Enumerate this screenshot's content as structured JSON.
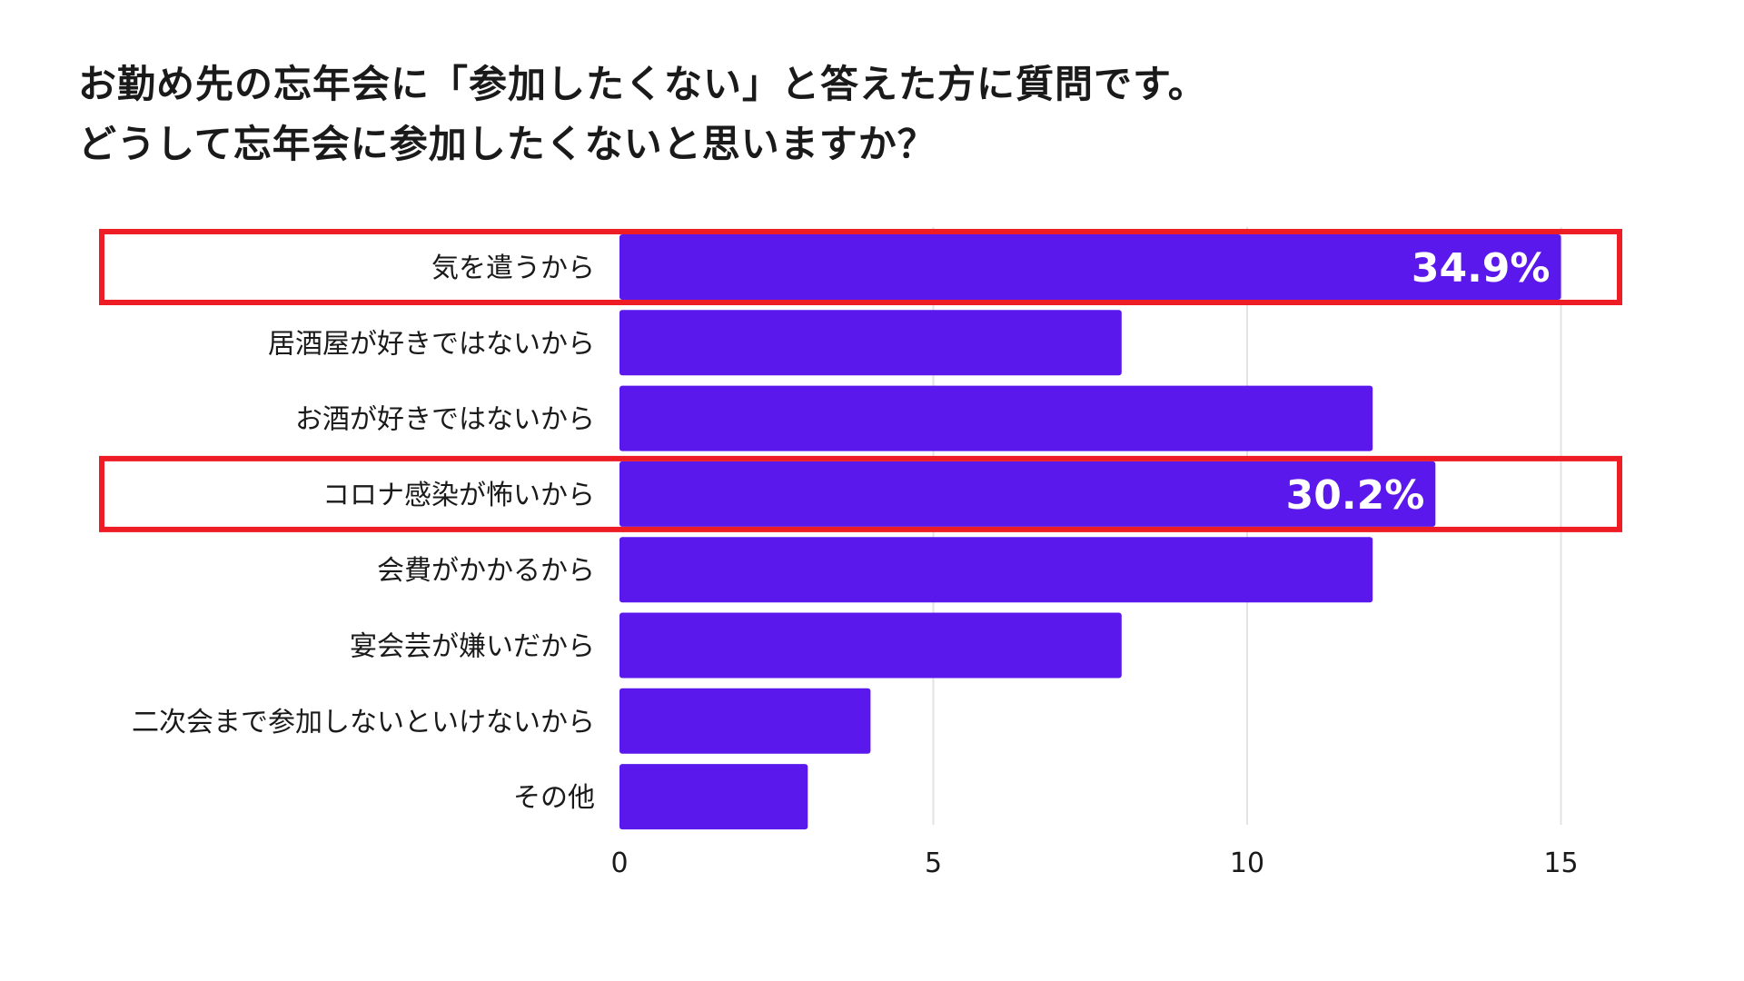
{
  "colors": {
    "bar": "#5b18ec",
    "highlight": "#ee1c25",
    "grid": "#e3e3e3"
  },
  "chart_data": {
    "type": "bar",
    "orientation": "horizontal",
    "title": [
      "お勤め先の忘年会に「参加したくない」と答えた方に質問です。",
      "どうして忘年会に参加したくないと思いますか？"
    ],
    "categories": [
      "気を遣うから",
      "居酒屋が好きではないから",
      "お酒が好きではないから",
      "コロナ感染が怖いから",
      "会費がかかるから",
      "宴会芸が嫌いだから",
      "二次会まで参加しないといけないから",
      "その他"
    ],
    "values": [
      15,
      8,
      12,
      13,
      12,
      8,
      4,
      3
    ],
    "data_labels": [
      "34.9%",
      "",
      "",
      "30.2%",
      "",
      "",
      "",
      ""
    ],
    "highlighted": [
      true,
      false,
      false,
      true,
      false,
      false,
      false,
      false
    ],
    "xlim": [
      0,
      16
    ],
    "xticks": [
      0,
      5,
      10,
      15
    ],
    "grid": true,
    "legend": false
  }
}
